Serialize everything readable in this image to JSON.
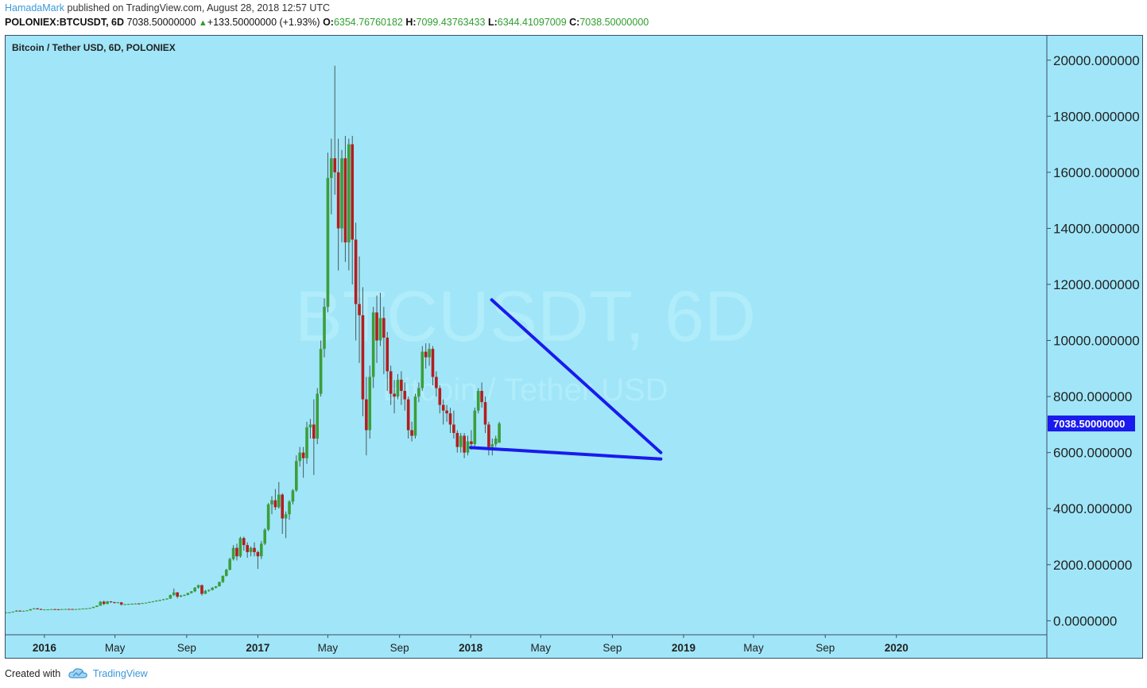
{
  "header": {
    "author": "HamadaMark",
    "published_text": "published on TradingView.com, August 28, 2018 12:57 UTC",
    "symbol_line": "POLONIEX:BTCUSDT, 6D",
    "last_price": "7038.50000000",
    "change_arrow": "▲",
    "change": "+133.50000000 (+1.93%)",
    "open_label": "O:",
    "open": "6354.76760182",
    "high_label": "H:",
    "high": "7099.43763433",
    "low_label": "L:",
    "low": "6344.41097009",
    "close_label": "C:",
    "close": "7038.50000000"
  },
  "chart_title": "Bitcoin / Tether USD, 6D, POLONIEX",
  "watermark": {
    "symbol": "BTCUSDT, 6D",
    "description": "Bitcoin / Tether USD"
  },
  "footer": {
    "created_with": "Created with",
    "brand": "TradingView"
  },
  "colors": {
    "background": "#a0e6f8",
    "up_candle": "#3b9e3b",
    "down_candle": "#b21e1e",
    "wick": "#4a5a5a",
    "trendline": "#1a1aee",
    "price_tag": "#1a1aee",
    "border": "#3a4f66"
  },
  "chart_data": {
    "type": "candlestick",
    "title": "Bitcoin / Tether USD, 6D, POLONIEX",
    "y_axis": {
      "position": "right",
      "min": -500,
      "max": 20900,
      "ticks": [
        0,
        2000,
        4000,
        6000,
        8000,
        10000,
        12000,
        14000,
        16000,
        18000,
        20000
      ],
      "tick_labels": [
        "0.0000000",
        "2000.000000",
        "4000.000000",
        "6000.000000",
        "8000.000000",
        "10000.000000",
        "12000.000000",
        "14000.000000",
        "16000.000000",
        "18000.000000",
        "20000.000000"
      ]
    },
    "x_axis": {
      "start": "2015-10-25",
      "end": "2020-09-15",
      "ticks": [
        {
          "date": "2016-01-01",
          "label": "2016",
          "bold": true
        },
        {
          "date": "2016-05-01",
          "label": "May",
          "bold": false
        },
        {
          "date": "2016-09-01",
          "label": "Sep",
          "bold": false
        },
        {
          "date": "2017-01-01",
          "label": "2017",
          "bold": true
        },
        {
          "date": "2017-05-01",
          "label": "May",
          "bold": false
        },
        {
          "date": "2017-09-01",
          "label": "Sep",
          "bold": false
        },
        {
          "date": "2018-01-01",
          "label": "2018",
          "bold": true
        },
        {
          "date": "2018-05-01",
          "label": "May",
          "bold": false
        },
        {
          "date": "2018-09-01",
          "label": "Sep",
          "bold": false
        },
        {
          "date": "2019-01-01",
          "label": "2019",
          "bold": true
        },
        {
          "date": "2019-05-01",
          "label": "May",
          "bold": false
        },
        {
          "date": "2019-09-01",
          "label": "Sep",
          "bold": false
        },
        {
          "date": "2020-01-01",
          "label": "2020",
          "bold": true
        }
      ]
    },
    "grid": false,
    "last_price_label": "7038.50000000",
    "last_price_value": 7038.5,
    "candle_interval_days": 6,
    "candles_start": "2015-10-27",
    "candles": [
      [
        290,
        300,
        285,
        298
      ],
      [
        298,
        305,
        290,
        302
      ],
      [
        302,
        330,
        300,
        325
      ],
      [
        325,
        380,
        320,
        360
      ],
      [
        360,
        375,
        330,
        345
      ],
      [
        345,
        360,
        335,
        352
      ],
      [
        352,
        375,
        350,
        370
      ],
      [
        370,
        420,
        360,
        415
      ],
      [
        415,
        455,
        405,
        440
      ],
      [
        440,
        460,
        400,
        420
      ],
      [
        420,
        430,
        380,
        392
      ],
      [
        392,
        410,
        385,
        403
      ],
      [
        403,
        412,
        395,
        405
      ],
      [
        405,
        420,
        398,
        415
      ],
      [
        415,
        425,
        405,
        410
      ],
      [
        410,
        418,
        398,
        402
      ],
      [
        402,
        420,
        400,
        416
      ],
      [
        416,
        425,
        408,
        420
      ],
      [
        420,
        428,
        412,
        418
      ],
      [
        418,
        422,
        405,
        412
      ],
      [
        412,
        420,
        408,
        416
      ],
      [
        416,
        430,
        412,
        425
      ],
      [
        425,
        440,
        420,
        435
      ],
      [
        435,
        445,
        425,
        440
      ],
      [
        440,
        460,
        435,
        455
      ],
      [
        455,
        500,
        450,
        495
      ],
      [
        495,
        545,
        490,
        540
      ],
      [
        540,
        700,
        530,
        680
      ],
      [
        680,
        720,
        560,
        600
      ],
      [
        600,
        710,
        590,
        690
      ],
      [
        690,
        700,
        640,
        660
      ],
      [
        660,
        680,
        620,
        650
      ],
      [
        650,
        670,
        630,
        655
      ],
      [
        655,
        670,
        540,
        580
      ],
      [
        580,
        600,
        560,
        590
      ],
      [
        590,
        605,
        570,
        600
      ],
      [
        600,
        615,
        585,
        605
      ],
      [
        605,
        625,
        600,
        615
      ],
      [
        615,
        630,
        600,
        610
      ],
      [
        610,
        640,
        605,
        630
      ],
      [
        630,
        650,
        620,
        645
      ],
      [
        645,
        680,
        640,
        670
      ],
      [
        670,
        700,
        660,
        690
      ],
      [
        690,
        730,
        685,
        720
      ],
      [
        720,
        750,
        700,
        740
      ],
      [
        740,
        780,
        730,
        765
      ],
      [
        765,
        800,
        750,
        790
      ],
      [
        790,
        930,
        780,
        920
      ],
      [
        920,
        1150,
        880,
        1010
      ],
      [
        1010,
        1030,
        800,
        860
      ],
      [
        860,
        920,
        840,
        900
      ],
      [
        900,
        940,
        880,
        920
      ],
      [
        920,
        1000,
        910,
        990
      ],
      [
        990,
        1060,
        970,
        1050
      ],
      [
        1050,
        1200,
        1020,
        1180
      ],
      [
        1180,
        1290,
        1150,
        1270
      ],
      [
        1270,
        1290,
        900,
        960
      ],
      [
        960,
        1100,
        950,
        1070
      ],
      [
        1070,
        1120,
        1030,
        1100
      ],
      [
        1100,
        1200,
        1080,
        1180
      ],
      [
        1180,
        1240,
        1150,
        1230
      ],
      [
        1230,
        1400,
        1220,
        1380
      ],
      [
        1380,
        1620,
        1350,
        1600
      ],
      [
        1600,
        1850,
        1580,
        1820
      ],
      [
        1820,
        2250,
        1800,
        2200
      ],
      [
        2200,
        2700,
        2150,
        2600
      ],
      [
        2600,
        2750,
        2150,
        2300
      ],
      [
        2300,
        3000,
        2250,
        2950
      ],
      [
        2950,
        3000,
        2500,
        2700
      ],
      [
        2700,
        2800,
        2250,
        2450
      ],
      [
        2450,
        2650,
        2300,
        2600
      ],
      [
        2600,
        2800,
        2300,
        2450
      ],
      [
        2450,
        2500,
        1850,
        2300
      ],
      [
        2300,
        2850,
        2200,
        2750
      ],
      [
        2750,
        3300,
        2700,
        3250
      ],
      [
        3250,
        4200,
        3200,
        4150
      ],
      [
        4150,
        4450,
        3800,
        4300
      ],
      [
        4300,
        4700,
        3950,
        4050
      ],
      [
        4050,
        4950,
        4000,
        4500
      ],
      [
        4500,
        4550,
        3100,
        3650
      ],
      [
        3650,
        3900,
        2950,
        3800
      ],
      [
        3800,
        4300,
        3600,
        4250
      ],
      [
        4250,
        4700,
        4150,
        4650
      ],
      [
        4650,
        5900,
        4600,
        5700
      ],
      [
        5700,
        6200,
        5500,
        6000
      ],
      [
        6000,
        6200,
        5100,
        5800
      ],
      [
        5800,
        7100,
        5600,
        6900
      ],
      [
        6900,
        7200,
        6500,
        7000
      ],
      [
        7000,
        7900,
        5200,
        6500
      ],
      [
        6500,
        8300,
        6300,
        8100
      ],
      [
        8100,
        10000,
        8000,
        9700
      ],
      [
        9700,
        11500,
        9400,
        11200
      ],
      [
        11200,
        16700,
        11000,
        15800
      ],
      [
        15800,
        17200,
        14500,
        16500
      ],
      [
        16500,
        19800,
        15200,
        16000
      ],
      [
        16000,
        17200,
        12500,
        14000
      ],
      [
        14000,
        16800,
        13500,
        16500
      ],
      [
        16500,
        17300,
        12800,
        13500
      ],
      [
        13500,
        17200,
        12500,
        17000
      ],
      [
        17000,
        17300,
        12000,
        13600
      ],
      [
        13600,
        14200,
        10000,
        11300
      ],
      [
        11300,
        13000,
        9200,
        10900
      ],
      [
        10900,
        11900,
        7300,
        7900
      ],
      [
        7900,
        8700,
        5900,
        6800
      ],
      [
        6800,
        9100,
        6500,
        8700
      ],
      [
        8700,
        11200,
        8300,
        11000
      ],
      [
        11000,
        11600,
        9200,
        10000
      ],
      [
        10000,
        11700,
        9800,
        10800
      ],
      [
        10800,
        11200,
        8800,
        10100
      ],
      [
        10100,
        10300,
        8200,
        8900
      ],
      [
        8900,
        9100,
        7700,
        8100
      ],
      [
        8100,
        8600,
        7400,
        8000
      ],
      [
        8000,
        8800,
        7900,
        8600
      ],
      [
        8600,
        8900,
        7700,
        8200
      ],
      [
        8200,
        8500,
        7500,
        7900
      ],
      [
        7900,
        8000,
        6500,
        6800
      ],
      [
        6800,
        7100,
        6400,
        6600
      ],
      [
        6600,
        8100,
        6500,
        8000
      ],
      [
        8000,
        8500,
        7800,
        8300
      ],
      [
        8300,
        9800,
        8200,
        9600
      ],
      [
        9600,
        9900,
        9000,
        9400
      ],
      [
        9400,
        9900,
        9100,
        9700
      ],
      [
        9700,
        9800,
        8400,
        8700
      ],
      [
        8700,
        8900,
        8000,
        8300
      ],
      [
        8300,
        8400,
        7400,
        7700
      ],
      [
        7700,
        7900,
        7000,
        7500
      ],
      [
        7500,
        7700,
        7100,
        7400
      ],
      [
        7400,
        7600,
        6700,
        7000
      ],
      [
        7000,
        7500,
        6500,
        6700
      ],
      [
        6700,
        6800,
        6000,
        6200
      ],
      [
        6200,
        6700,
        6000,
        6600
      ],
      [
        6600,
        6700,
        5800,
        6000
      ],
      [
        6000,
        6600,
        5900,
        6400
      ],
      [
        6400,
        6800,
        6100,
        6300
      ],
      [
        6300,
        7600,
        6200,
        7500
      ],
      [
        7500,
        8300,
        7400,
        8200
      ],
      [
        8200,
        8500,
        7600,
        7800
      ],
      [
        7800,
        8000,
        6700,
        7000
      ],
      [
        7000,
        7100,
        5900,
        6200
      ],
      [
        6200,
        6500,
        5900,
        6300
      ],
      [
        6300,
        6600,
        6200,
        6500
      ],
      [
        6354.77,
        7099.44,
        6344.41,
        7038.5
      ]
    ],
    "annotations": [
      {
        "type": "trendline",
        "name": "upper",
        "from": {
          "date": "2018-02-06",
          "value": 11450
        },
        "to": {
          "date": "2018-11-23",
          "value": 6000
        }
      },
      {
        "type": "trendline",
        "name": "lower",
        "from": {
          "date": "2018-01-01",
          "value": 6180
        },
        "to": {
          "date": "2018-11-23",
          "value": 5770
        }
      }
    ]
  }
}
